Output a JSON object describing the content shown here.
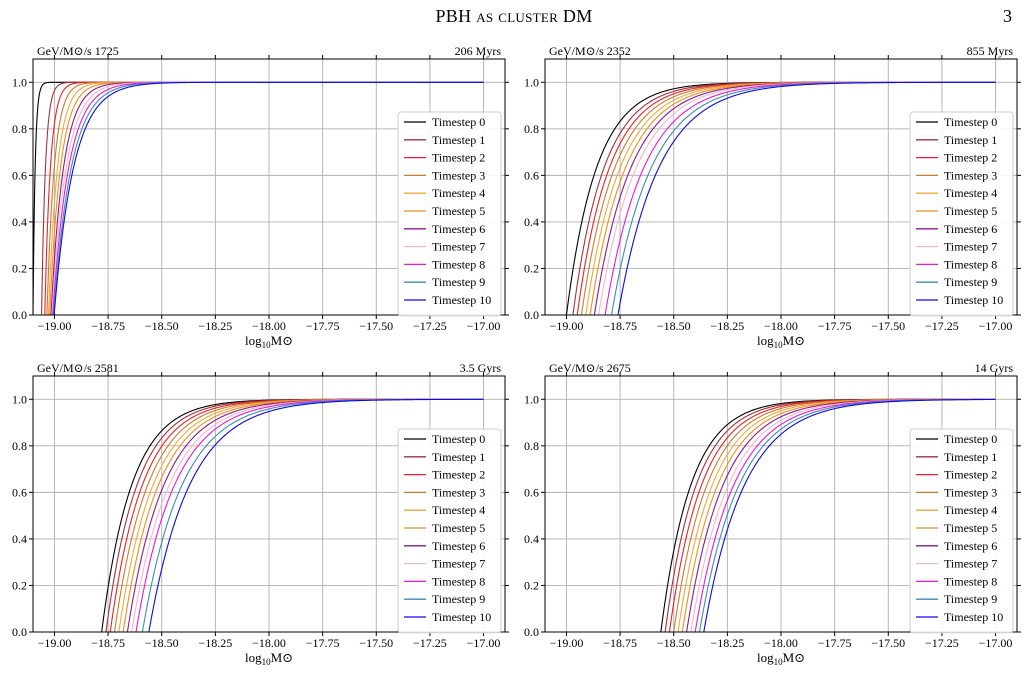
{
  "header": {
    "title": "PBH as cluster DM",
    "page_number": "3"
  },
  "colors": {
    "grid": "#b0b0b0",
    "axes": "#000000",
    "legend_border": "#cccccc"
  },
  "series_style": [
    {
      "name": "Timestep 0",
      "color": "#000000"
    },
    {
      "name": "Timestep 1",
      "color": "#a0323c"
    },
    {
      "name": "Timestep 2",
      "color": "#e8202a"
    },
    {
      "name": "Timestep 3",
      "color": "#c87c28"
    },
    {
      "name": "Timestep 4",
      "color": "#f2a83a"
    },
    {
      "name": "Timestep 5",
      "color": "#f28c1c"
    },
    {
      "name": "Timestep 6",
      "color": "#8a1a8a"
    },
    {
      "name": "Timestep 7",
      "color": "#f4b6cc"
    },
    {
      "name": "Timestep 8",
      "color": "#e81ad2"
    },
    {
      "name": "Timestep 9",
      "color": "#3c8cb4"
    },
    {
      "name": "Timestep 10",
      "color": "#0a0ae6"
    }
  ],
  "chart_data": [
    {
      "type": "line",
      "title_left": "GeV/M⊙/s 1725",
      "title_right": "206 Myrs",
      "xlabel": "log10M⊙",
      "xlim": [
        -19.1,
        -16.9
      ],
      "ylim": [
        0,
        1.1
      ],
      "xticks": [
        -19.0,
        -18.75,
        -18.5,
        -18.25,
        -18.0,
        -17.75,
        -17.5,
        -17.25,
        -17.0
      ],
      "xtick_labels": [
        "−19.00",
        "−18.75",
        "−18.50",
        "−18.25",
        "−18.00",
        "−17.75",
        "−17.50",
        "−17.25",
        "−17.00"
      ],
      "yticks": [
        0,
        0.2,
        0.4,
        0.6,
        0.8,
        1.0
      ],
      "ytick_labels": [
        "0.0",
        "0.2",
        "0.4",
        "0.6",
        "0.8",
        "1.0"
      ],
      "grid": true,
      "legend": "right",
      "curve_model": {
        "form": "1 - exp(-(x - x0)/scale)",
        "x_end": -17.0
      },
      "series": [
        {
          "name": "Timestep 0",
          "x0": -19.1,
          "scale": 0.01
        },
        {
          "name": "Timestep 1",
          "x0": -19.06,
          "scale": 0.018
        },
        {
          "name": "Timestep 2",
          "x0": -19.045,
          "scale": 0.026
        },
        {
          "name": "Timestep 3",
          "x0": -19.035,
          "scale": 0.034
        },
        {
          "name": "Timestep 4",
          "x0": -19.028,
          "scale": 0.042
        },
        {
          "name": "Timestep 5",
          "x0": -19.022,
          "scale": 0.05
        },
        {
          "name": "Timestep 6",
          "x0": -19.016,
          "scale": 0.058
        },
        {
          "name": "Timestep 7",
          "x0": -19.012,
          "scale": 0.066
        },
        {
          "name": "Timestep 8",
          "x0": -19.008,
          "scale": 0.074
        },
        {
          "name": "Timestep 9",
          "x0": -19.004,
          "scale": 0.082
        },
        {
          "name": "Timestep 10",
          "x0": -19.0015,
          "scale": 0.09
        }
      ]
    },
    {
      "type": "line",
      "title_left": "GeV/M⊙/s 2352",
      "title_right": "855 Myrs",
      "xlabel": "log10M⊙",
      "xlim": [
        -19.1,
        -16.9
      ],
      "ylim": [
        0,
        1.1
      ],
      "xticks": [
        -19.0,
        -18.75,
        -18.5,
        -18.25,
        -18.0,
        -17.75,
        -17.5,
        -17.25,
        -17.0
      ],
      "xtick_labels": [
        "−19.00",
        "−18.75",
        "−18.50",
        "−18.25",
        "−18.00",
        "−17.75",
        "−17.50",
        "−17.25",
        "−17.00"
      ],
      "yticks": [
        0,
        0.2,
        0.4,
        0.6,
        0.8,
        1.0
      ],
      "ytick_labels": [
        "0.0",
        "0.2",
        "0.4",
        "0.6",
        "0.8",
        "1.0"
      ],
      "grid": true,
      "legend": "right",
      "curve_model": {
        "form": "1 - exp(-(x - x0)/scale)",
        "x_end": -17.0
      },
      "series": [
        {
          "name": "Timestep 0",
          "x0": -19.0,
          "scale": 0.14
        },
        {
          "name": "Timestep 1",
          "x0": -18.97,
          "scale": 0.145
        },
        {
          "name": "Timestep 2",
          "x0": -18.95,
          "scale": 0.15
        },
        {
          "name": "Timestep 3",
          "x0": -18.93,
          "scale": 0.155
        },
        {
          "name": "Timestep 4",
          "x0": -18.91,
          "scale": 0.16
        },
        {
          "name": "Timestep 5",
          "x0": -18.89,
          "scale": 0.165
        },
        {
          "name": "Timestep 6",
          "x0": -18.87,
          "scale": 0.17
        },
        {
          "name": "Timestep 7",
          "x0": -18.85,
          "scale": 0.175
        },
        {
          "name": "Timestep 8",
          "x0": -18.82,
          "scale": 0.18
        },
        {
          "name": "Timestep 9",
          "x0": -18.79,
          "scale": 0.185
        },
        {
          "name": "Timestep 10",
          "x0": -18.76,
          "scale": 0.19
        }
      ]
    },
    {
      "type": "line",
      "title_left": "GeV/M⊙/s 2581",
      "title_right": "3.5 Gyrs",
      "xlabel": "log10M⊙",
      "xlim": [
        -19.1,
        -16.9
      ],
      "ylim": [
        0,
        1.1
      ],
      "xticks": [
        -19.0,
        -18.75,
        -18.5,
        -18.25,
        -18.0,
        -17.75,
        -17.5,
        -17.25,
        -17.0
      ],
      "xtick_labels": [
        "−19.00",
        "−18.75",
        "−18.50",
        "−18.25",
        "−18.00",
        "−17.75",
        "−17.50",
        "−17.25",
        "−17.00"
      ],
      "yticks": [
        0,
        0.2,
        0.4,
        0.6,
        0.8,
        1.0
      ],
      "ytick_labels": [
        "0.0",
        "0.2",
        "0.4",
        "0.6",
        "0.8",
        "1.0"
      ],
      "grid": true,
      "legend": "right",
      "curve_model": {
        "form": "1 - exp(-(x - x0)/scale)",
        "x_end": -17.0
      },
      "series": [
        {
          "name": "Timestep 0",
          "x0": -18.78,
          "scale": 0.14
        },
        {
          "name": "Timestep 1",
          "x0": -18.76,
          "scale": 0.145
        },
        {
          "name": "Timestep 2",
          "x0": -18.74,
          "scale": 0.15
        },
        {
          "name": "Timestep 3",
          "x0": -18.72,
          "scale": 0.155
        },
        {
          "name": "Timestep 4",
          "x0": -18.7,
          "scale": 0.16
        },
        {
          "name": "Timestep 5",
          "x0": -18.68,
          "scale": 0.165
        },
        {
          "name": "Timestep 6",
          "x0": -18.66,
          "scale": 0.17
        },
        {
          "name": "Timestep 7",
          "x0": -18.64,
          "scale": 0.175
        },
        {
          "name": "Timestep 8",
          "x0": -18.62,
          "scale": 0.18
        },
        {
          "name": "Timestep 9",
          "x0": -18.59,
          "scale": 0.185
        },
        {
          "name": "Timestep 10",
          "x0": -18.56,
          "scale": 0.19
        }
      ]
    },
    {
      "type": "line",
      "title_left": "GeV/M⊙/s 2675",
      "title_right": "14 Gyrs",
      "xlabel": "log10M⊙",
      "xlim": [
        -19.1,
        -16.9
      ],
      "ylim": [
        0,
        1.1
      ],
      "xticks": [
        -19.0,
        -18.75,
        -18.5,
        -18.25,
        -18.0,
        -17.75,
        -17.5,
        -17.25,
        -17.0
      ],
      "xtick_labels": [
        "−19.00",
        "−18.75",
        "−18.50",
        "−18.25",
        "−18.00",
        "−17.75",
        "−17.50",
        "−17.25",
        "−17.00"
      ],
      "yticks": [
        0,
        0.2,
        0.4,
        0.6,
        0.8,
        1.0
      ],
      "ytick_labels": [
        "0.0",
        "0.2",
        "0.4",
        "0.6",
        "0.8",
        "1.0"
      ],
      "grid": true,
      "legend": "right",
      "curve_model": {
        "form": "1 - exp(-(x - x0)/scale)",
        "x_end": -17.0
      },
      "series": [
        {
          "name": "Timestep 0",
          "x0": -18.56,
          "scale": 0.14
        },
        {
          "name": "Timestep 1",
          "x0": -18.54,
          "scale": 0.145
        },
        {
          "name": "Timestep 2",
          "x0": -18.52,
          "scale": 0.15
        },
        {
          "name": "Timestep 3",
          "x0": -18.5,
          "scale": 0.155
        },
        {
          "name": "Timestep 4",
          "x0": -18.48,
          "scale": 0.16
        },
        {
          "name": "Timestep 5",
          "x0": -18.46,
          "scale": 0.165
        },
        {
          "name": "Timestep 6",
          "x0": -18.44,
          "scale": 0.17
        },
        {
          "name": "Timestep 7",
          "x0": -18.42,
          "scale": 0.175
        },
        {
          "name": "Timestep 8",
          "x0": -18.4,
          "scale": 0.18
        },
        {
          "name": "Timestep 9",
          "x0": -18.38,
          "scale": 0.185
        },
        {
          "name": "Timestep 10",
          "x0": -18.36,
          "scale": 0.19
        }
      ]
    }
  ]
}
